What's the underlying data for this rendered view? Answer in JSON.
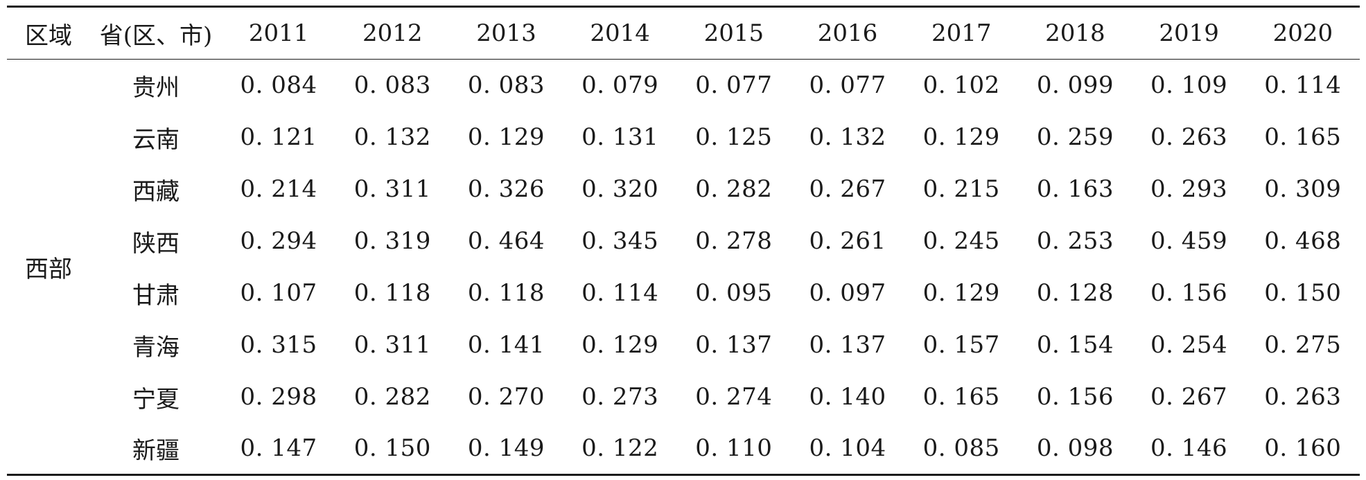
{
  "table": {
    "headers": {
      "region": "区域",
      "province": "省(区、市)",
      "years": [
        "2011",
        "2012",
        "2013",
        "2014",
        "2015",
        "2016",
        "2017",
        "2018",
        "2019",
        "2020"
      ]
    },
    "region_name": "西部",
    "rows": [
      {
        "province": "贵州",
        "values": [
          "0. 084",
          "0. 083",
          "0. 083",
          "0. 079",
          "0. 077",
          "0. 077",
          "0. 102",
          "0. 099",
          "0. 109",
          "0. 114"
        ]
      },
      {
        "province": "云南",
        "values": [
          "0. 121",
          "0. 132",
          "0. 129",
          "0. 131",
          "0. 125",
          "0. 132",
          "0. 129",
          "0. 259",
          "0. 263",
          "0. 165"
        ]
      },
      {
        "province": "西藏",
        "values": [
          "0. 214",
          "0. 311",
          "0. 326",
          "0. 320",
          "0. 282",
          "0. 267",
          "0. 215",
          "0. 163",
          "0. 293",
          "0. 309"
        ]
      },
      {
        "province": "陕西",
        "values": [
          "0. 294",
          "0. 319",
          "0. 464",
          "0. 345",
          "0. 278",
          "0. 261",
          "0. 245",
          "0. 253",
          "0. 459",
          "0. 468"
        ]
      },
      {
        "province": "甘肃",
        "values": [
          "0. 107",
          "0. 118",
          "0. 118",
          "0. 114",
          "0. 095",
          "0. 097",
          "0. 129",
          "0. 128",
          "0. 156",
          "0. 150"
        ]
      },
      {
        "province": "青海",
        "values": [
          "0. 315",
          "0. 311",
          "0. 141",
          "0. 129",
          "0. 137",
          "0. 137",
          "0. 157",
          "0. 154",
          "0. 254",
          "0. 275"
        ]
      },
      {
        "province": "宁夏",
        "values": [
          "0. 298",
          "0. 282",
          "0. 270",
          "0. 273",
          "0. 274",
          "0. 140",
          "0. 165",
          "0. 156",
          "0. 267",
          "0. 263"
        ]
      },
      {
        "province": "新疆",
        "values": [
          "0. 147",
          "0. 150",
          "0. 149",
          "0. 122",
          "0. 110",
          "0. 104",
          "0. 085",
          "0. 098",
          "0. 146",
          "0. 160"
        ]
      }
    ]
  }
}
